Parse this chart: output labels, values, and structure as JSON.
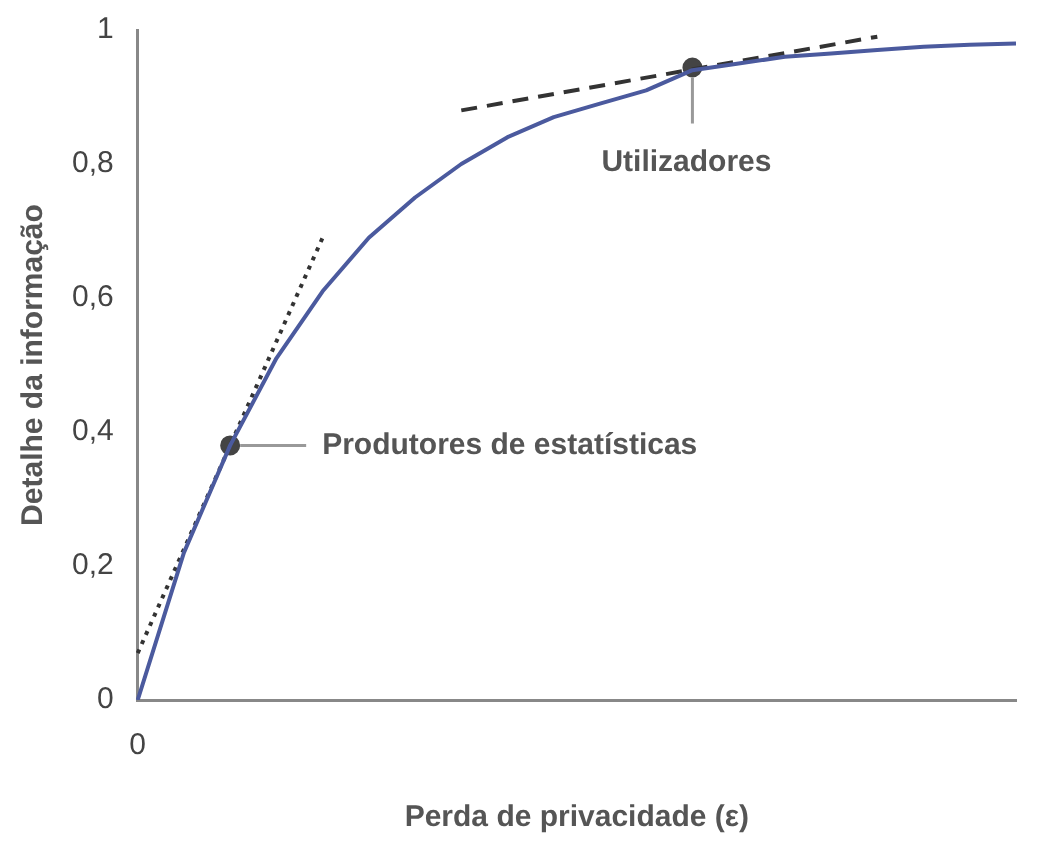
{
  "chart_data": {
    "type": "line",
    "xlabel": "Perda de privacidade (ε)",
    "ylabel": "Detalhe da informação",
    "categories": [
      "0",
      null,
      null,
      null,
      null,
      null,
      null,
      null,
      null,
      null,
      null,
      null,
      null,
      null,
      null,
      null,
      null,
      null,
      null,
      null
    ],
    "series": [
      {
        "color": "#4b5a9e",
        "line_style": "solid",
        "marker": "none",
        "values": [
          0,
          0.22,
          0.38,
          0.51,
          0.61,
          0.69,
          0.75,
          0.8,
          0.84,
          0.87,
          0.89,
          0.91,
          0.94,
          0.95,
          0.96,
          0.965,
          0.97,
          0.975,
          0.978,
          0.98
        ]
      },
      {
        "type": "line",
        "color": "#333333",
        "line_style": "dotted",
        "marker": "none",
        "values": [
          0.07,
          null,
          null,
          null,
          0.69,
          null,
          null,
          null,
          null,
          null,
          null,
          null,
          null,
          null,
          null,
          null,
          null,
          null,
          null,
          null
        ]
      },
      {
        "type": "line",
        "color": "#333333",
        "line_style": "dashed",
        "marker": "none",
        "values": [
          null,
          null,
          null,
          null,
          null,
          null,
          null,
          0.88,
          null,
          null,
          null,
          null,
          null,
          null,
          null,
          null,
          0.99,
          null,
          null,
          null
        ]
      },
      {
        "type": "scatter",
        "color": "#444444",
        "marker": "circle",
        "values": [
          null,
          null,
          0.38,
          null,
          null,
          null,
          null,
          null,
          null,
          null,
          null,
          null,
          0.944,
          null,
          null,
          null,
          null,
          null,
          null,
          null
        ]
      }
    ],
    "annotations": [
      "Produtores de estatísticas",
      "Utilizadores"
    ],
    "ylim": [
      0,
      1
    ],
    "yticks": [
      0,
      {
        "value": 0.2,
        "label": "0,2"
      },
      {
        "value": 0.4,
        "label": "0,4"
      },
      {
        "value": 0.6,
        "label": "0,6"
      },
      {
        "value": 0.8,
        "label": "0,8"
      },
      1
    ],
    "grid": false,
    "legend": false
  }
}
